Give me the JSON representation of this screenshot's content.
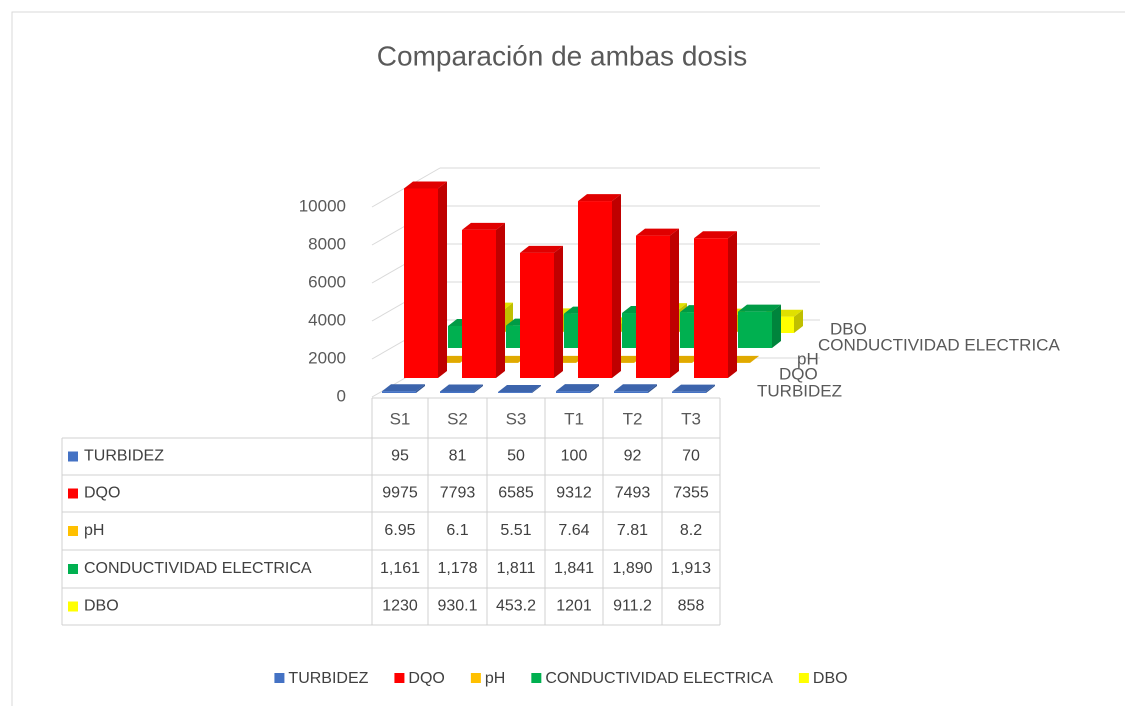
{
  "chart_data": {
    "type": "bar3d",
    "title": "Comparación de ambas dosis",
    "categories": [
      "S1",
      "S2",
      "S3",
      "T1",
      "T2",
      "T3"
    ],
    "series": [
      {
        "name": "TURBIDEZ",
        "color": "#4472c4",
        "values": [
          95,
          81,
          50,
          100,
          92,
          70
        ]
      },
      {
        "name": "DQO",
        "color": "#ff0000",
        "values": [
          9975,
          7793,
          6585,
          9312,
          7493,
          7355
        ]
      },
      {
        "name": "pH",
        "color": "#ffc000",
        "values": [
          6.95,
          6.1,
          5.51,
          7.64,
          7.81,
          8.2
        ]
      },
      {
        "name": "CONDUCTIVIDAD ELECTRICA",
        "color": "#00b050",
        "values": [
          1161,
          1178,
          1811,
          1841,
          1890,
          1913
        ],
        "value_labels": [
          "1,161",
          "1,178",
          "1,811",
          "1,841",
          "1,890",
          "1,913"
        ]
      },
      {
        "name": "DBO",
        "color": "#ffff00",
        "values": [
          1230,
          930.1,
          453.2,
          1201,
          911.2,
          858
        ]
      }
    ],
    "ylim": [
      0,
      10000
    ],
    "yticks": [
      0,
      2000,
      4000,
      6000,
      8000,
      10000
    ],
    "grid": true,
    "legend": "bottom",
    "data_table": true
  }
}
